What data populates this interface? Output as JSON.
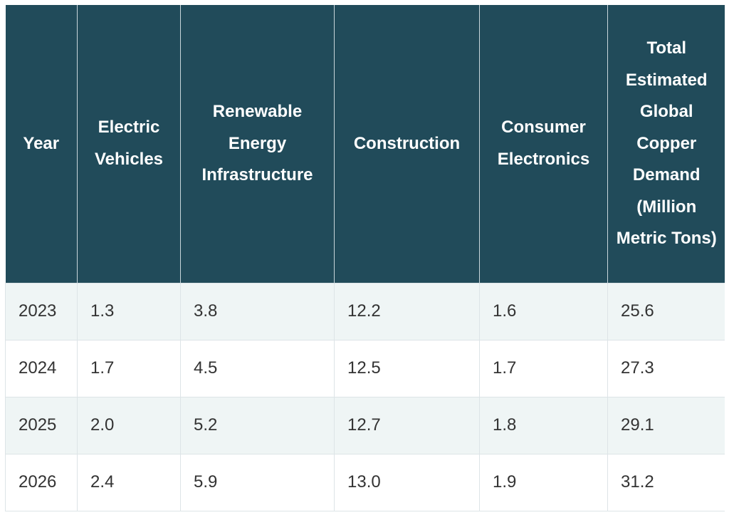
{
  "table": {
    "header": [
      "Year",
      "Electric Vehicles",
      "Renewable Energy Infrastructure",
      "Construction",
      "Consumer Electronics",
      "Total Estimated Global Copper Demand (Million Metric Tons)"
    ],
    "rows": [
      [
        "2023",
        "1.3",
        "3.8",
        "12.2",
        "1.6",
        "25.6"
      ],
      [
        "2024",
        "1.7",
        "4.5",
        "12.5",
        "1.7",
        "27.3"
      ],
      [
        "2025",
        "2.0",
        "5.2",
        "12.7",
        "1.8",
        "29.1"
      ],
      [
        "2026",
        "2.4",
        "5.9",
        "13.0",
        "1.9",
        "31.2"
      ]
    ]
  }
}
